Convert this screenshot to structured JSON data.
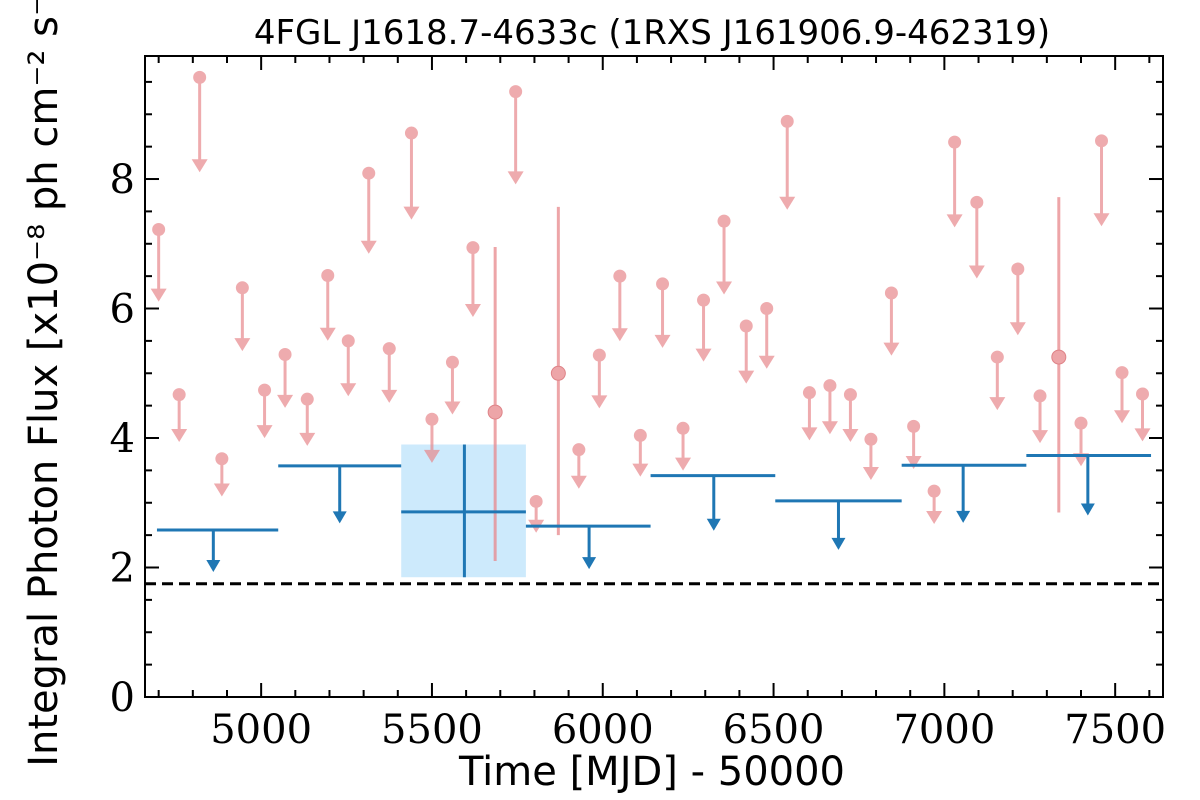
{
  "chart_data": {
    "type": "scatter",
    "title": "4FGL J1618.7-4633c (1RXS J161906.9-462319)",
    "xlabel": "Time [MJD] - 50000",
    "ylabel": "Integral Photon Flux [x10⁻⁸ ph cm⁻² s⁻¹]",
    "xlim": [
      4660,
      7640
    ],
    "ylim": [
      0,
      9.9
    ],
    "xticks": [
      5000,
      5500,
      6000,
      6500,
      7000,
      7500
    ],
    "xtick_labels": [
      "5000",
      "5500",
      "6000",
      "6500",
      "7000",
      "7500"
    ],
    "yticks": [
      0,
      2,
      4,
      6,
      8
    ],
    "ytick_labels": [
      "0",
      "2",
      "4",
      "6",
      "8"
    ],
    "reference_line": 1.75,
    "colors": {
      "fine": "#e8888c",
      "coarse": "#1f77b4",
      "band": "#cdeafc",
      "reference": "#000000"
    },
    "fine_upper_limits": [
      {
        "x": 4700,
        "y": 7.22
      },
      {
        "x": 4760,
        "y": 4.67
      },
      {
        "x": 4820,
        "y": 9.57
      },
      {
        "x": 4885,
        "y": 3.68
      },
      {
        "x": 4945,
        "y": 6.32
      },
      {
        "x": 5010,
        "y": 4.74
      },
      {
        "x": 5070,
        "y": 5.29
      },
      {
        "x": 5135,
        "y": 4.6
      },
      {
        "x": 5195,
        "y": 6.51
      },
      {
        "x": 5255,
        "y": 5.5
      },
      {
        "x": 5315,
        "y": 8.09
      },
      {
        "x": 5375,
        "y": 5.38
      },
      {
        "x": 5440,
        "y": 8.71
      },
      {
        "x": 5500,
        "y": 4.29
      },
      {
        "x": 5560,
        "y": 5.17
      },
      {
        "x": 5620,
        "y": 6.94
      },
      {
        "x": 5745,
        "y": 9.35
      },
      {
        "x": 5805,
        "y": 3.02
      },
      {
        "x": 5930,
        "y": 3.82
      },
      {
        "x": 5990,
        "y": 5.28
      },
      {
        "x": 6050,
        "y": 6.5
      },
      {
        "x": 6110,
        "y": 4.04
      },
      {
        "x": 6175,
        "y": 6.38
      },
      {
        "x": 6235,
        "y": 4.15
      },
      {
        "x": 6295,
        "y": 6.13
      },
      {
        "x": 6355,
        "y": 7.35
      },
      {
        "x": 6420,
        "y": 5.73
      },
      {
        "x": 6480,
        "y": 6.0
      },
      {
        "x": 6540,
        "y": 8.89
      },
      {
        "x": 6605,
        "y": 4.7
      },
      {
        "x": 6665,
        "y": 4.81
      },
      {
        "x": 6725,
        "y": 4.67
      },
      {
        "x": 6785,
        "y": 3.98
      },
      {
        "x": 6845,
        "y": 6.24
      },
      {
        "x": 6910,
        "y": 4.18
      },
      {
        "x": 6970,
        "y": 3.18
      },
      {
        "x": 7030,
        "y": 8.57
      },
      {
        "x": 7095,
        "y": 7.64
      },
      {
        "x": 7155,
        "y": 5.25
      },
      {
        "x": 7215,
        "y": 6.61
      },
      {
        "x": 7280,
        "y": 4.65
      },
      {
        "x": 7400,
        "y": 4.23
      },
      {
        "x": 7460,
        "y": 8.59
      },
      {
        "x": 7520,
        "y": 5.01
      },
      {
        "x": 7580,
        "y": 4.68
      }
    ],
    "fine_detections": [
      {
        "x": 5685,
        "y": 4.4,
        "ylo": 2.1,
        "yhi": 6.95
      },
      {
        "x": 5870,
        "y": 5.0,
        "ylo": 2.5,
        "yhi": 7.57
      },
      {
        "x": 7335,
        "y": 5.25,
        "ylo": 2.85,
        "yhi": 7.72
      }
    ],
    "coarse_upper_limits": [
      {
        "x": 4860,
        "xlo": 4695,
        "xhi": 5050,
        "y": 2.58
      },
      {
        "x": 5230,
        "xlo": 5050,
        "xhi": 5410,
        "y": 3.57
      },
      {
        "x": 5960,
        "xlo": 5775,
        "xhi": 6140,
        "y": 2.64
      },
      {
        "x": 6325,
        "xlo": 6140,
        "xhi": 6505,
        "y": 3.42
      },
      {
        "x": 6690,
        "xlo": 6505,
        "xhi": 6875,
        "y": 3.03
      },
      {
        "x": 7055,
        "xlo": 6875,
        "xhi": 7240,
        "y": 3.58
      },
      {
        "x": 7420,
        "xlo": 7240,
        "xhi": 7605,
        "y": 3.73
      }
    ],
    "coarse_detections": [
      {
        "x": 5595,
        "xlo": 5410,
        "xhi": 5775,
        "y": 2.86,
        "ylo": 1.85,
        "yhi": 3.9
      }
    ]
  }
}
